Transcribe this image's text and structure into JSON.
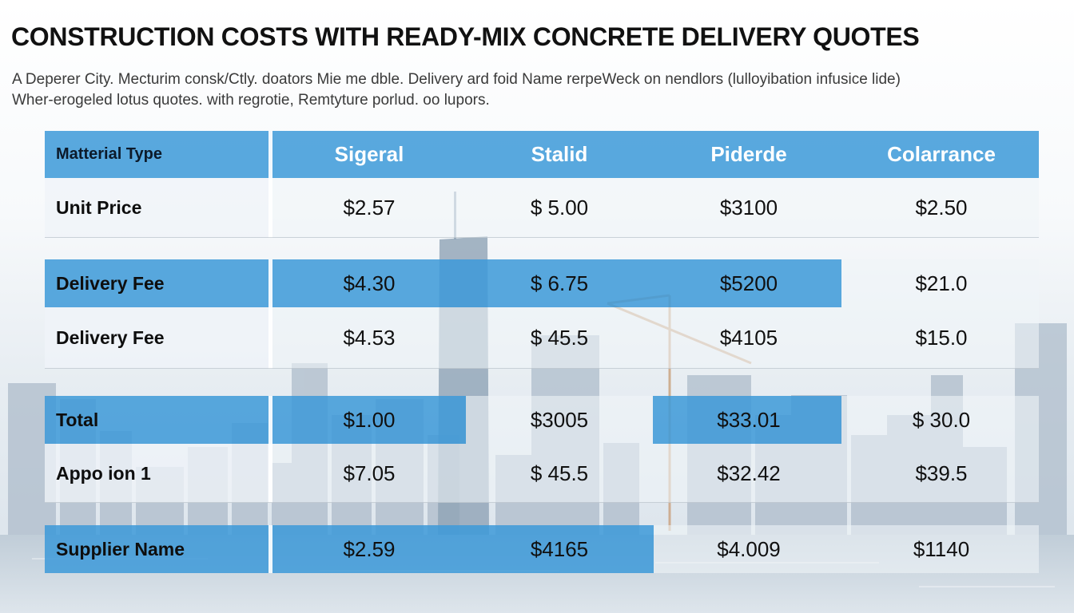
{
  "page": {
    "title": "CONSTRUCTION COSTS WITH READY-MIX CONCRETE DELIVERY QUOTES",
    "subtitle_line1": "A Deperer City. Mecturim consk/Ctly. doators Mie me dble. Delivery ard foid Name rerpeWeck on nendlors (lulloyibation infusice lide)",
    "subtitle_line2": "Wher-erogeled lotus quotes. with regrotie, Remtyture porlud. oo lupors."
  },
  "table": {
    "header": {
      "label": "Matterial Type",
      "columns": [
        "Sigeral",
        "Stalid",
        "Piderde",
        "Colarrance"
      ]
    },
    "rows": [
      {
        "label": "Unit Price",
        "values": [
          "$2.57",
          "$ 5.00",
          "$3100",
          "$2.50"
        ]
      },
      {
        "label": "Delivery Fee",
        "values": [
          "$4.30",
          "$ 6.75",
          "$5200",
          "$21.0"
        ]
      },
      {
        "label": "Delivery Fee",
        "values": [
          "$4.53",
          "$ 45.5",
          "$4105",
          "$15.0"
        ]
      },
      {
        "label": "Total",
        "values": [
          "$1.00",
          "$3005",
          "$33.01",
          "$ 30.0"
        ]
      },
      {
        "label": "Appo ion 1",
        "values": [
          "$7.05",
          "$ 45.5",
          "$32.42",
          "$39.5"
        ]
      },
      {
        "label": "Supplier Name",
        "values": [
          "$2.59",
          "$4165",
          "$4.009",
          "$1140"
        ]
      }
    ]
  },
  "colors": {
    "accent_blue": "#3E9AD9",
    "light_cell": "#F0F4F8",
    "header_text": "#FFFFFF",
    "body_text": "#101010"
  }
}
